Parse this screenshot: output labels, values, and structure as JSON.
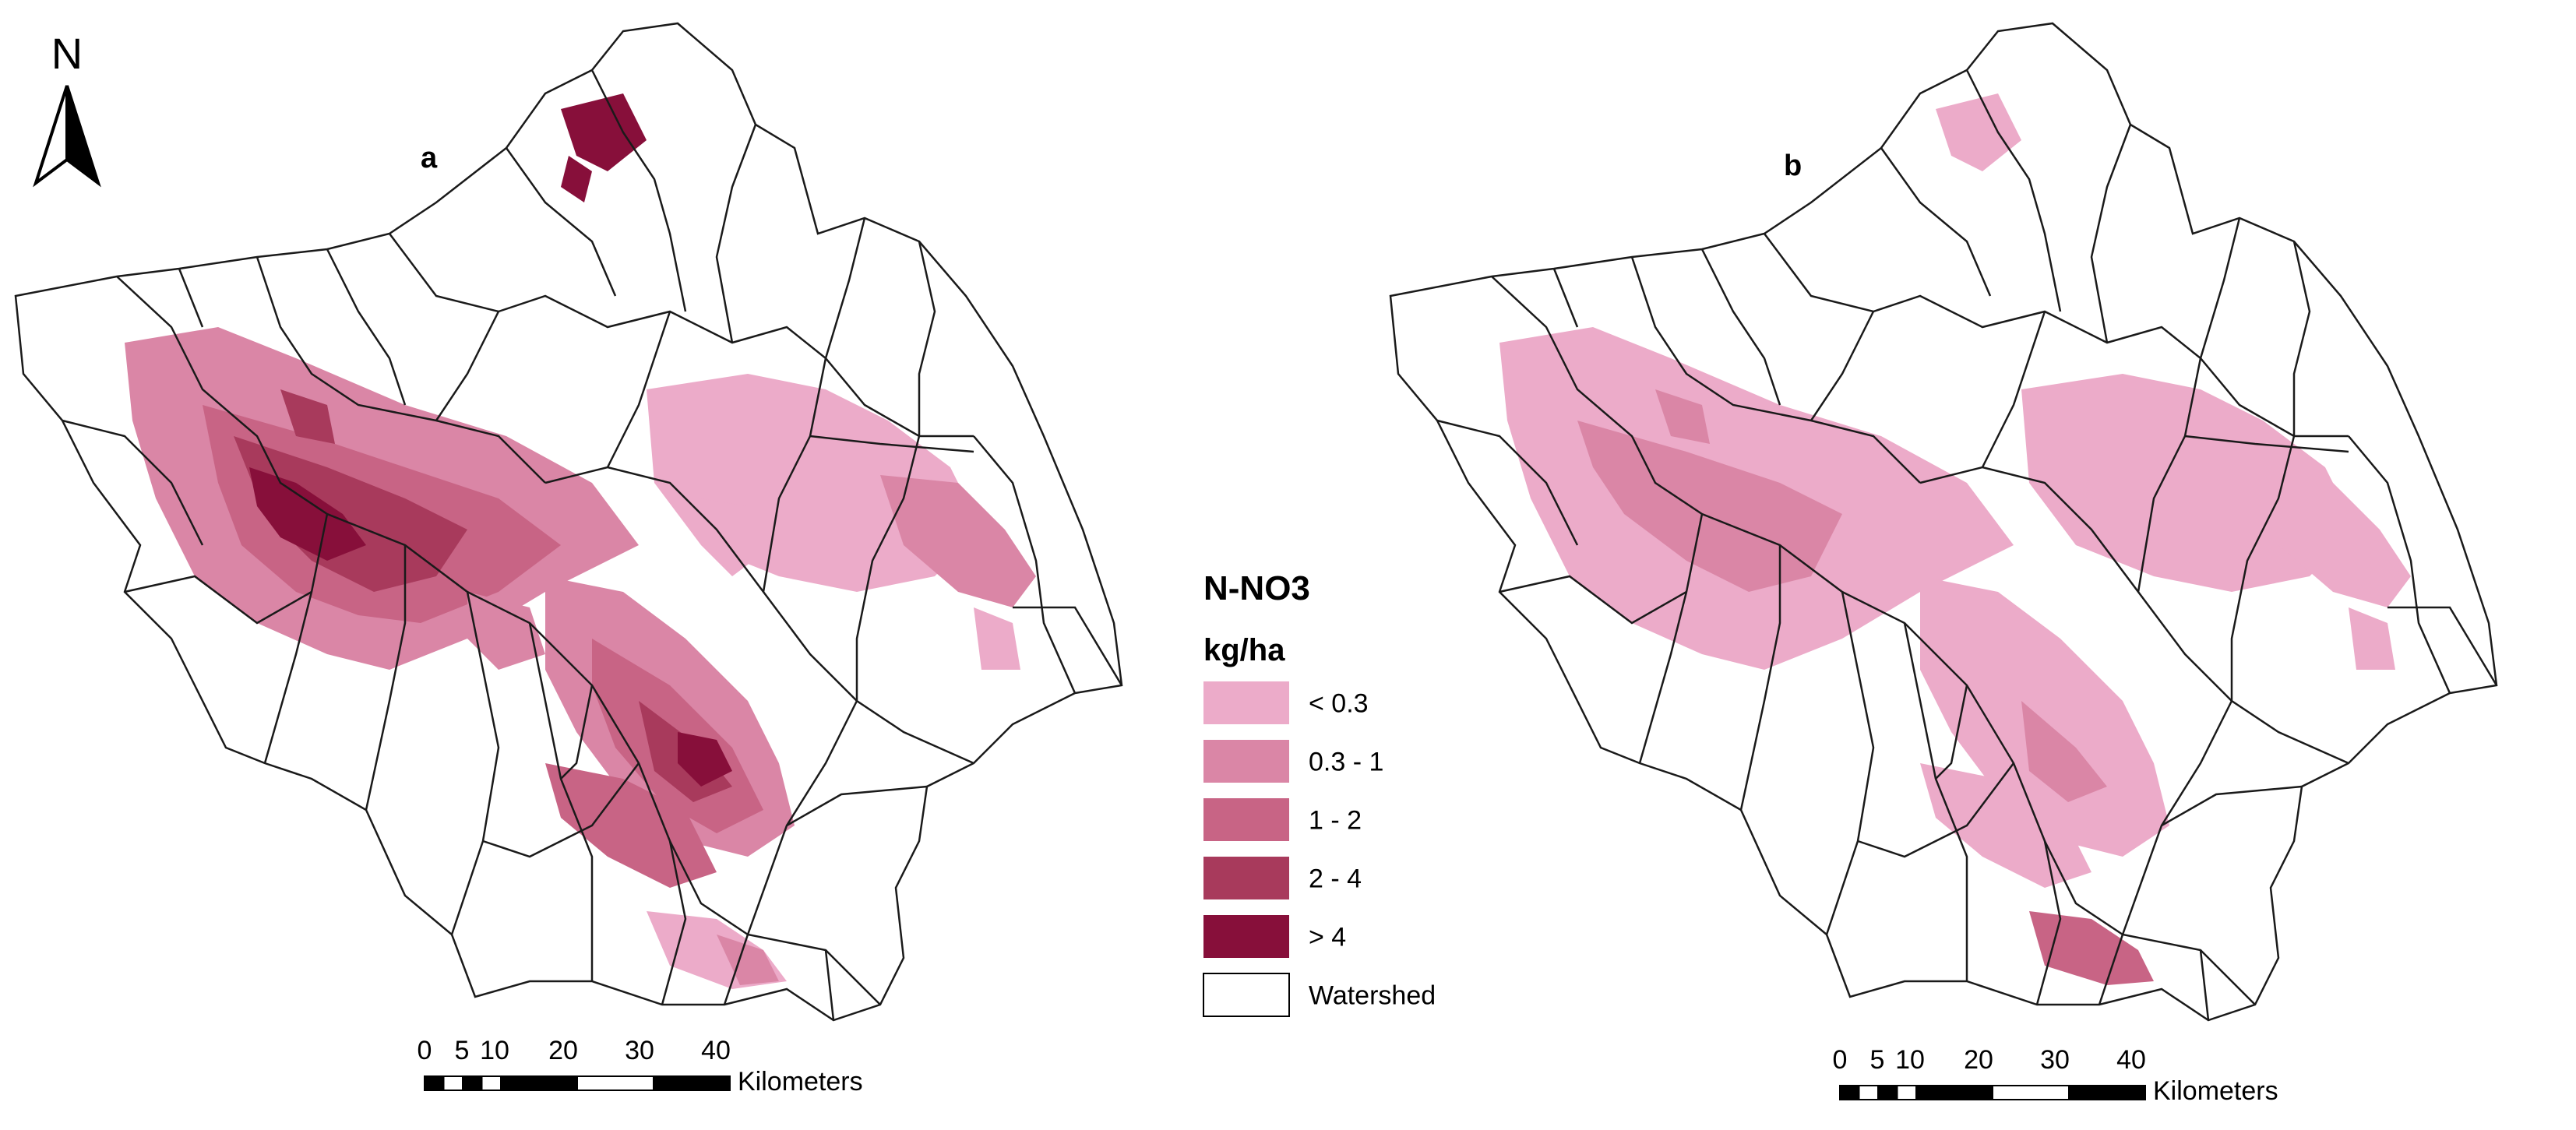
{
  "colors": {
    "lt03": "#ecabc9",
    "c03_1": "#da86a6",
    "c1_2": "#c86485",
    "c2_4": "#a83a5c",
    "gt4": "#870f3a",
    "outline": "#1a1a1a",
    "background": "#ffffff"
  },
  "north_arrow": {
    "letter": "N",
    "icon": "north-arrow-icon"
  },
  "panels": [
    {
      "label": "a",
      "scenario_classes": [
        "c03_1",
        "c1_2",
        "c2_4",
        "gt4",
        "lt03"
      ]
    },
    {
      "label": "b",
      "scenario_classes": [
        "lt03",
        "c03_1",
        "c1_2"
      ]
    }
  ],
  "legend": {
    "title": "N-NO3",
    "unit": "kg/ha",
    "items": [
      {
        "label": "< 0.3",
        "color_key": "lt03"
      },
      {
        "label": "0.3 - 1",
        "color_key": "c03_1"
      },
      {
        "label": "1 - 2",
        "color_key": "c1_2"
      },
      {
        "label": "2 - 4",
        "color_key": "c2_4"
      },
      {
        "label": "> 4",
        "color_key": "gt4"
      },
      {
        "label": "Watershed",
        "color_key": "background"
      }
    ]
  },
  "scale_bar": {
    "ticks": [
      "0",
      "5",
      "10",
      "20",
      "30",
      "40"
    ],
    "unit": "Kilometers"
  }
}
